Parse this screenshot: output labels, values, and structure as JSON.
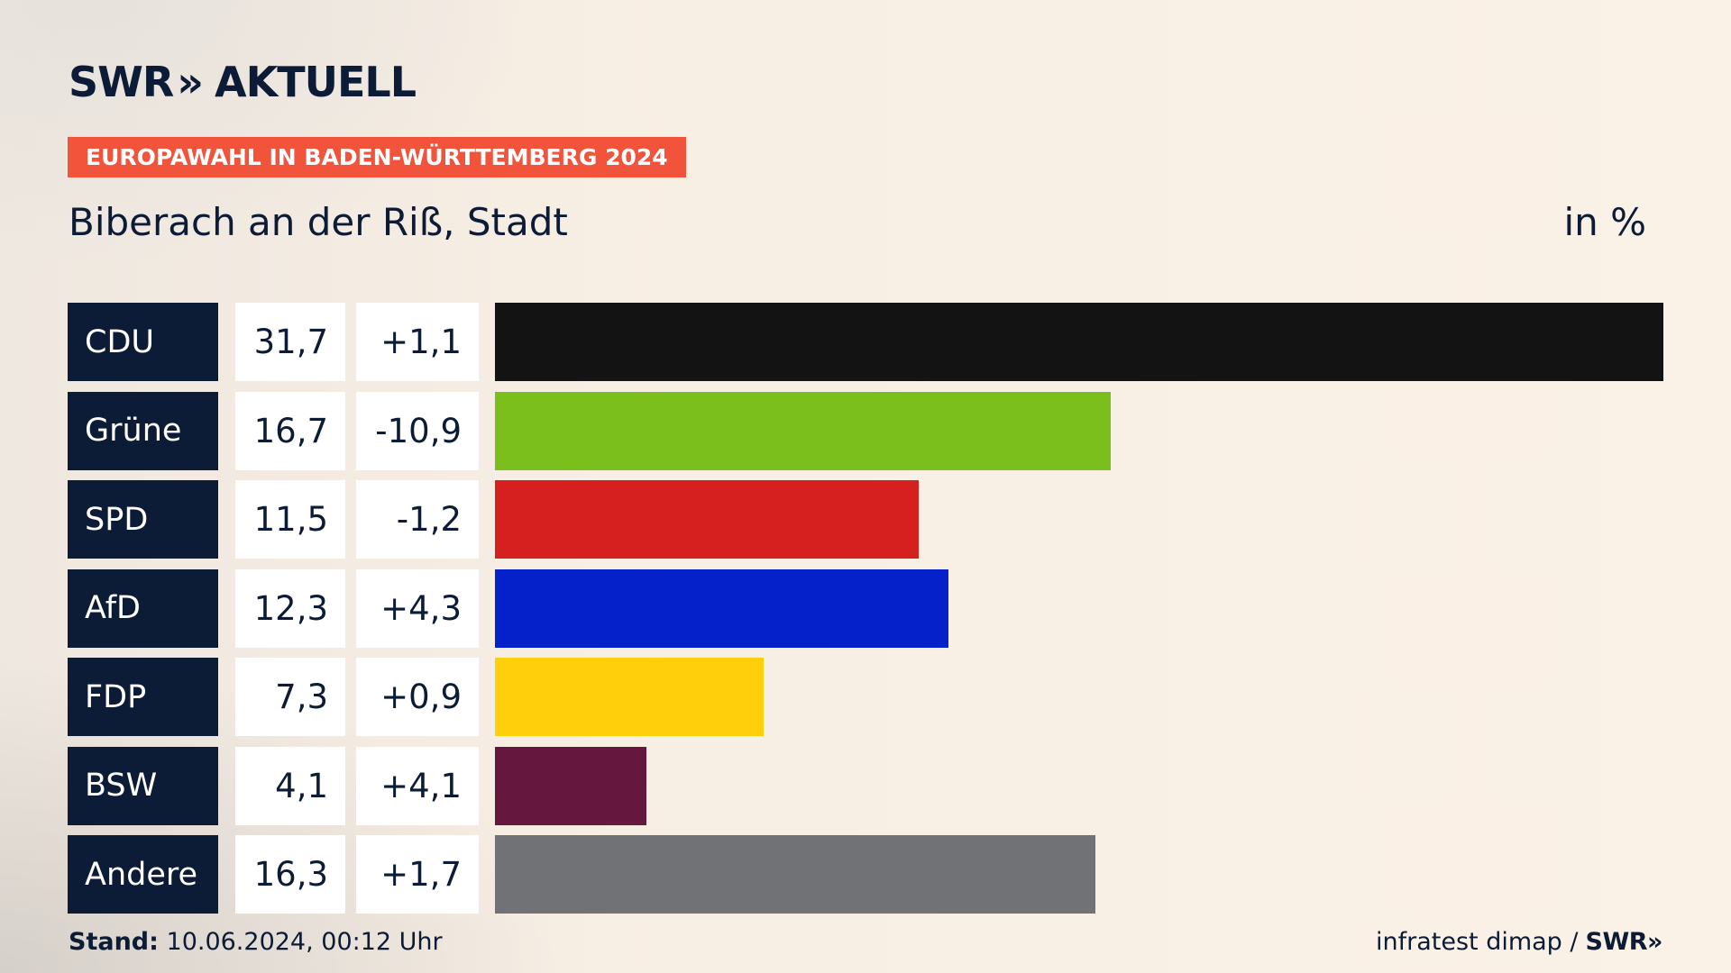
{
  "header": {
    "logo_text": "SWR",
    "logo_chevrons": "»",
    "logo_suffix": "AKTUELL",
    "banner": "EUROPAWAHL IN BADEN-WÜRTTEMBERG 2024",
    "region": "Biberach an der Riß, Stadt",
    "unit": "in %"
  },
  "chart_data": {
    "type": "bar",
    "orientation": "horizontal",
    "categories": [
      "CDU",
      "Grüne",
      "SPD",
      "AfD",
      "FDP",
      "BSW",
      "Andere"
    ],
    "values": [
      31.7,
      16.7,
      11.5,
      12.3,
      7.3,
      4.1,
      16.3
    ],
    "value_labels": [
      "31,7",
      "16,7",
      "11,5",
      "12,3",
      "7,3",
      "4,1",
      "16,3"
    ],
    "diff_labels": [
      "+1,1",
      "-10,9",
      "-1,2",
      "+4,3",
      "+0,9",
      "+4,1",
      "+1,7"
    ],
    "colors": [
      "#131313",
      "#7abf1c",
      "#d61f1f",
      "#0521c9",
      "#fecf0a",
      "#66173d",
      "#717275"
    ],
    "xlim": [
      0,
      31.7
    ],
    "unit": "in %",
    "grid": false,
    "legend": "none"
  },
  "footer": {
    "stand_label": "Stand:",
    "stand_value": "10.06.2024, 00:12 Uhr",
    "source": "infratest dimap /",
    "source_brand": "SWR",
    "source_chevrons": "»"
  }
}
